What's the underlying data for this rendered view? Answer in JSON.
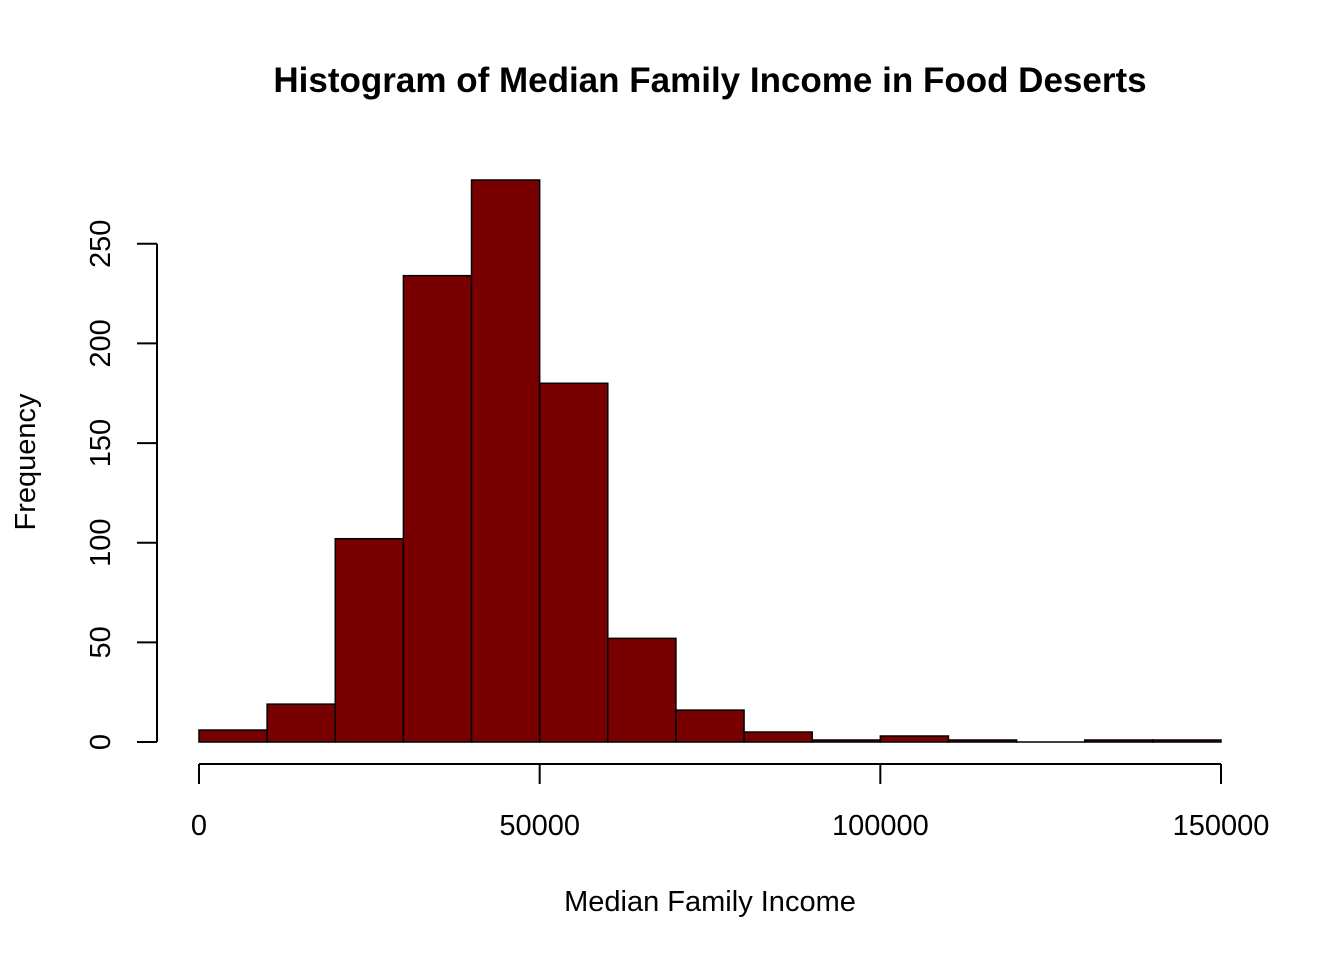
{
  "chart_data": {
    "type": "bar",
    "title": "Histogram of Median Family Income in Food Deserts",
    "xlabel": "Median Family Income",
    "ylabel": "Frequency",
    "bin_edges": [
      0,
      10000,
      20000,
      30000,
      40000,
      50000,
      60000,
      70000,
      80000,
      90000,
      100000,
      110000,
      120000,
      130000,
      140000,
      150000
    ],
    "values": [
      6,
      19,
      102,
      234,
      282,
      180,
      52,
      16,
      5,
      1,
      3,
      1,
      0,
      1,
      1
    ],
    "xlim": [
      0,
      150000
    ],
    "ylim": [
      0,
      282
    ],
    "x_ticks": [
      0,
      50000,
      100000,
      150000
    ],
    "y_ticks": [
      0,
      50,
      100,
      150,
      200,
      250
    ],
    "grid": false,
    "colors": {
      "bar_fill": "#780000",
      "bar_stroke": "#000000"
    }
  }
}
